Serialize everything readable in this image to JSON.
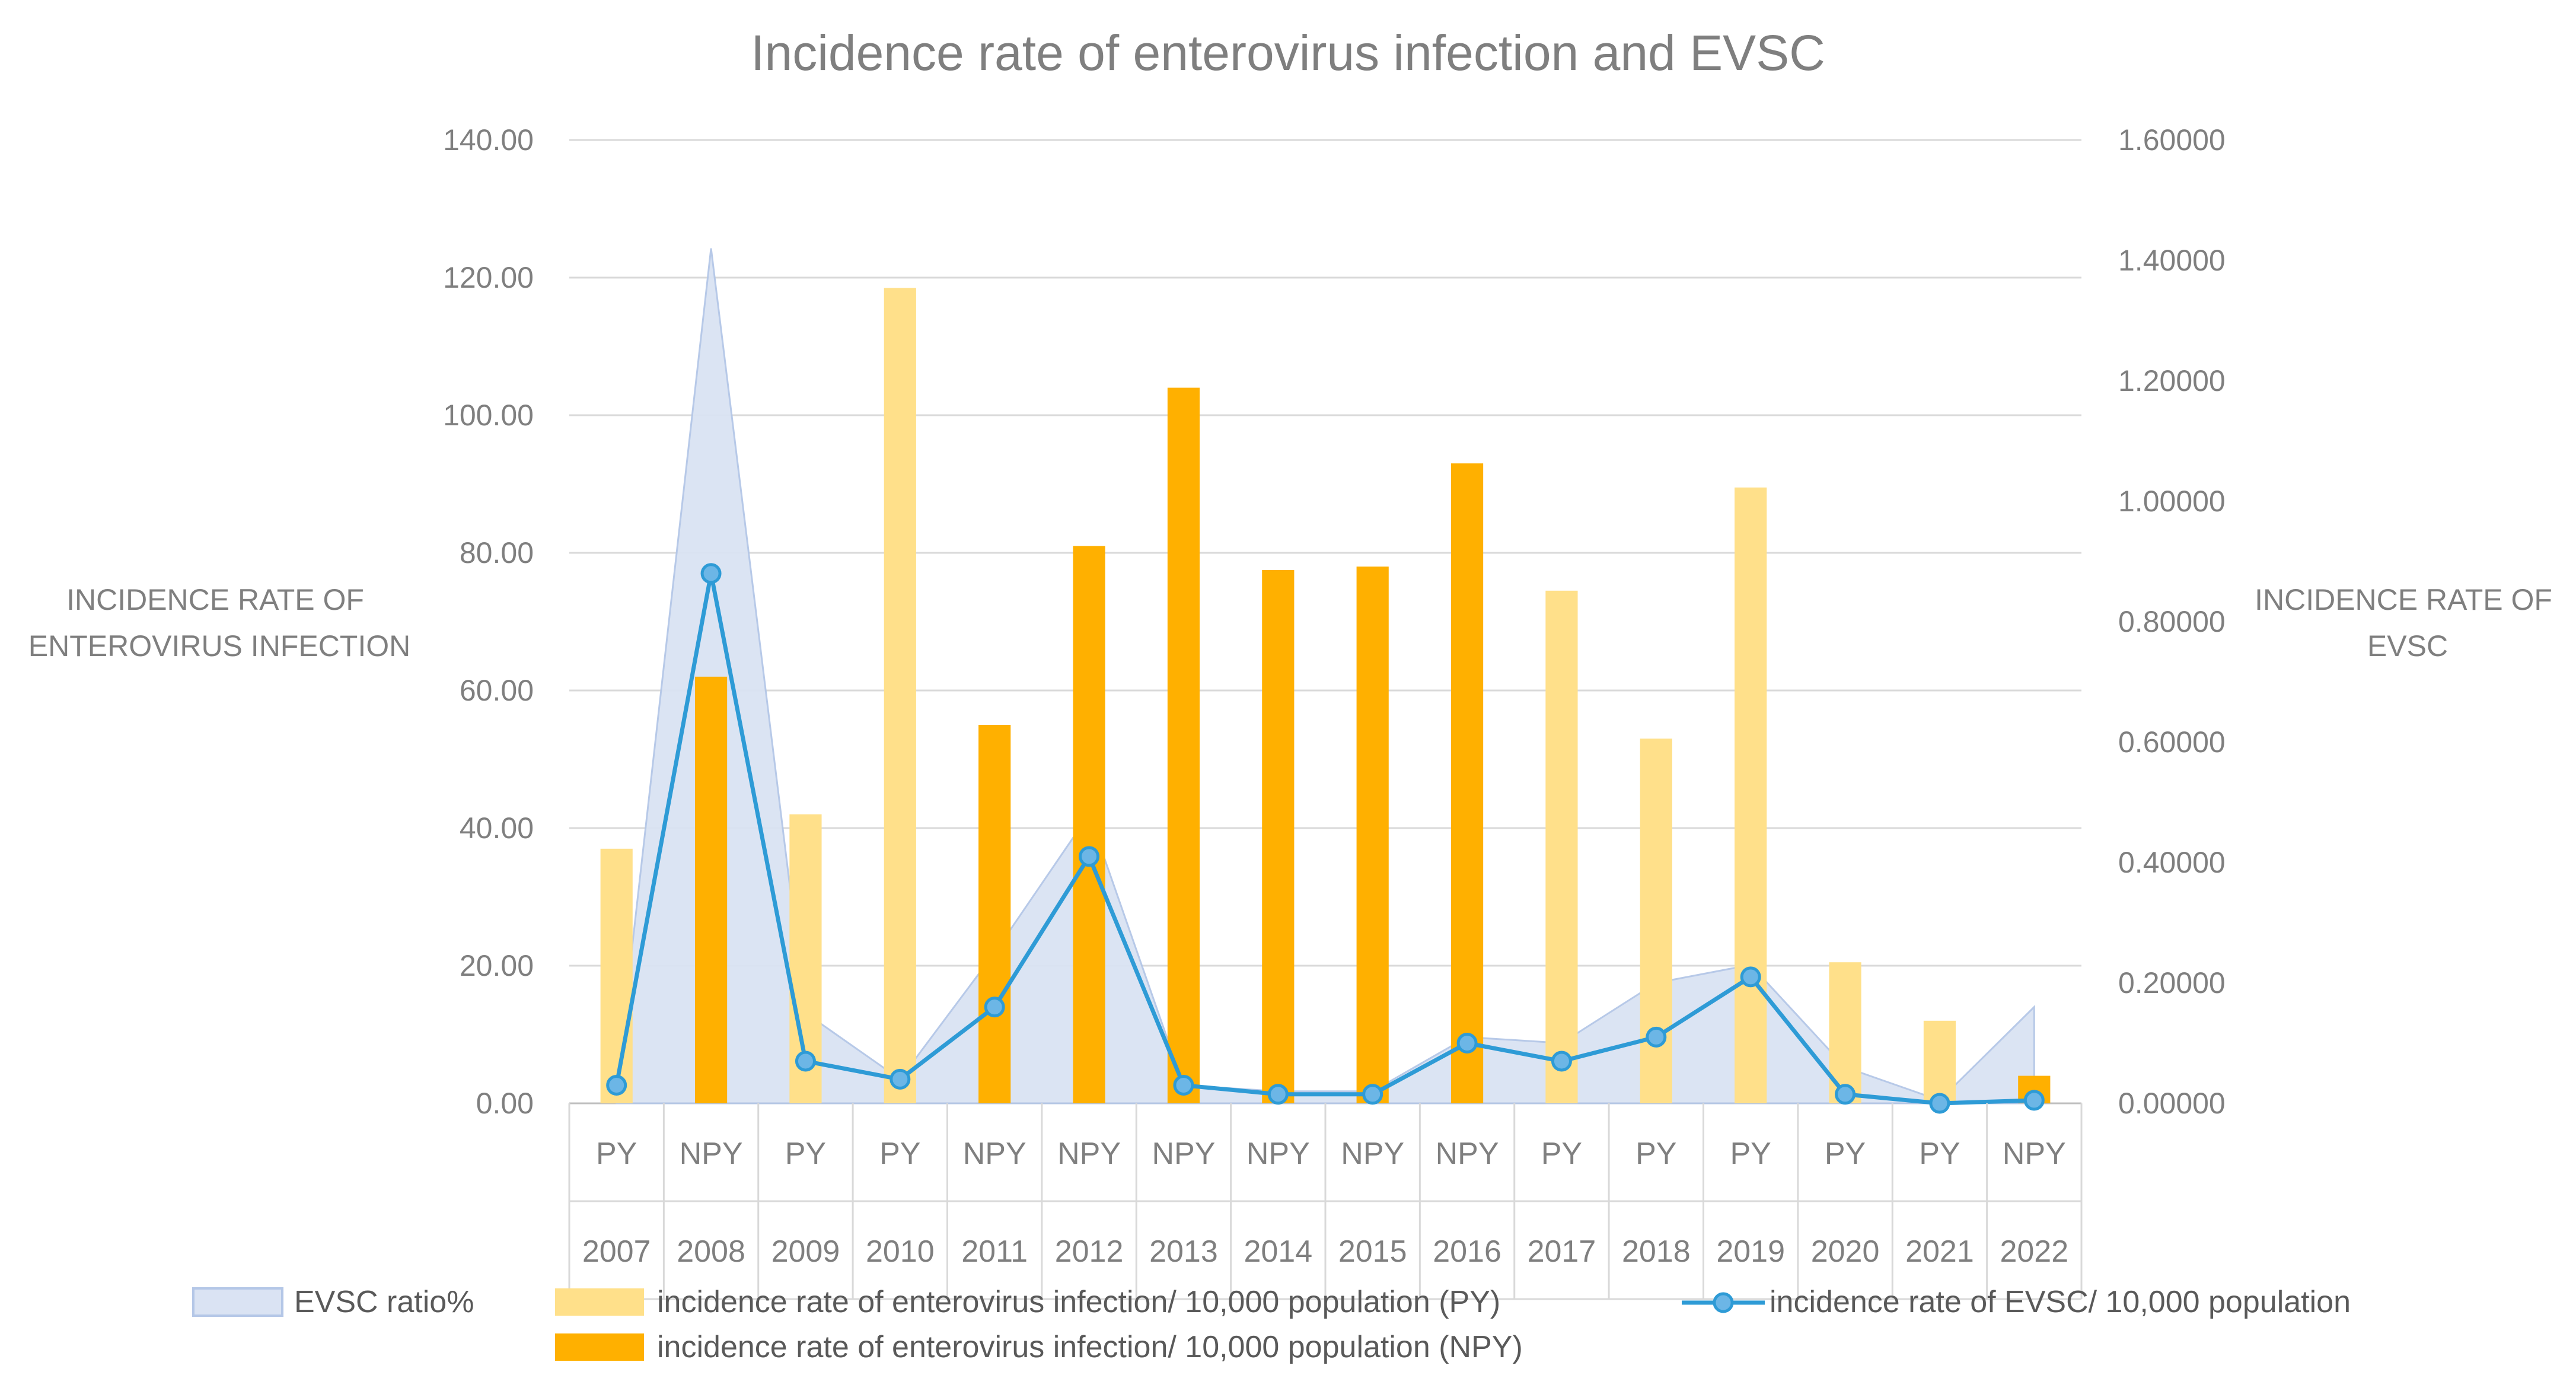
{
  "chart_data": {
    "type": "bar",
    "title": "Incidence rate of enterovirus infection and EVSC",
    "ylabel_left": [
      "INCIDENCE RATE OF",
      "ENTEROVIRUS INFECTION"
    ],
    "ylabel_right": [
      "INCIDENCE RATE OF",
      "EVSC"
    ],
    "ylim_left": [
      0,
      140
    ],
    "ylim_right": [
      0,
      1.6
    ],
    "left_ticks": [
      "0.00",
      "20.00",
      "40.00",
      "60.00",
      "80.00",
      "100.00",
      "120.00",
      "140.00"
    ],
    "right_ticks": [
      "0.00000",
      "0.20000",
      "0.40000",
      "0.60000",
      "0.80000",
      "1.00000",
      "1.20000",
      "1.40000",
      "1.60000"
    ],
    "categories": [
      {
        "group": "PY",
        "year": "2007"
      },
      {
        "group": "NPY",
        "year": "2008"
      },
      {
        "group": "PY",
        "year": "2009"
      },
      {
        "group": "PY",
        "year": "2010"
      },
      {
        "group": "NPY",
        "year": "2011"
      },
      {
        "group": "NPY",
        "year": "2012"
      },
      {
        "group": "NPY",
        "year": "2013"
      },
      {
        "group": "NPY",
        "year": "2014"
      },
      {
        "group": "NPY",
        "year": "2015"
      },
      {
        "group": "NPY",
        "year": "2016"
      },
      {
        "group": "PY",
        "year": "2017"
      },
      {
        "group": "PY",
        "year": "2018"
      },
      {
        "group": "PY",
        "year": "2019"
      },
      {
        "group": "PY",
        "year": "2020"
      },
      {
        "group": "PY",
        "year": "2021"
      },
      {
        "group": "NPY",
        "year": "2022"
      }
    ],
    "series": [
      {
        "name": "EVSC ratio%",
        "type": "area",
        "axis": "right",
        "color": "#dae3f3",
        "stroke": "#b4c7e7",
        "values": [
          0.03,
          1.42,
          0.15,
          0.04,
          0.25,
          0.48,
          0.03,
          0.02,
          0.02,
          0.11,
          0.1,
          0.2,
          0.23,
          0.06,
          0.005,
          0.16
        ]
      },
      {
        "name": "incidence rate of enterovirus infection/ 10,000 population (PY)",
        "type": "bar",
        "axis": "left",
        "color": "#ffe08a",
        "values": [
          37,
          null,
          42,
          118.5,
          null,
          null,
          null,
          null,
          null,
          null,
          74.5,
          53,
          89.5,
          20.5,
          12,
          null
        ]
      },
      {
        "name": "incidence rate of enterovirus infection/ 10,000 population (NPY)",
        "type": "bar",
        "axis": "left",
        "color": "#ffb000",
        "values": [
          null,
          62,
          null,
          null,
          55,
          81,
          104,
          77.5,
          78,
          93,
          null,
          null,
          null,
          null,
          null,
          4
        ]
      },
      {
        "name": "incidence rate of EVSC/ 10,000 population",
        "type": "line",
        "axis": "right",
        "color": "#2e9bd6",
        "marker_fill": "#6cb6e6",
        "values": [
          0.03,
          0.88,
          0.07,
          0.04,
          0.16,
          0.41,
          0.03,
          0.015,
          0.015,
          0.1,
          0.07,
          0.11,
          0.21,
          0.015,
          0.0,
          0.005
        ]
      }
    ],
    "legend": [
      {
        "label": "EVSC ratio%",
        "kind": "area"
      },
      {
        "label": "incidence rate of enterovirus infection/ 10,000 population (PY)",
        "kind": "bar-py"
      },
      {
        "label": "incidence rate of EVSC/ 10,000 population",
        "kind": "line"
      },
      {
        "label": "incidence rate of enterovirus infection/ 10,000 population (NPY)",
        "kind": "bar-npy"
      }
    ],
    "gridlines": true,
    "legend_position": "bottom"
  }
}
